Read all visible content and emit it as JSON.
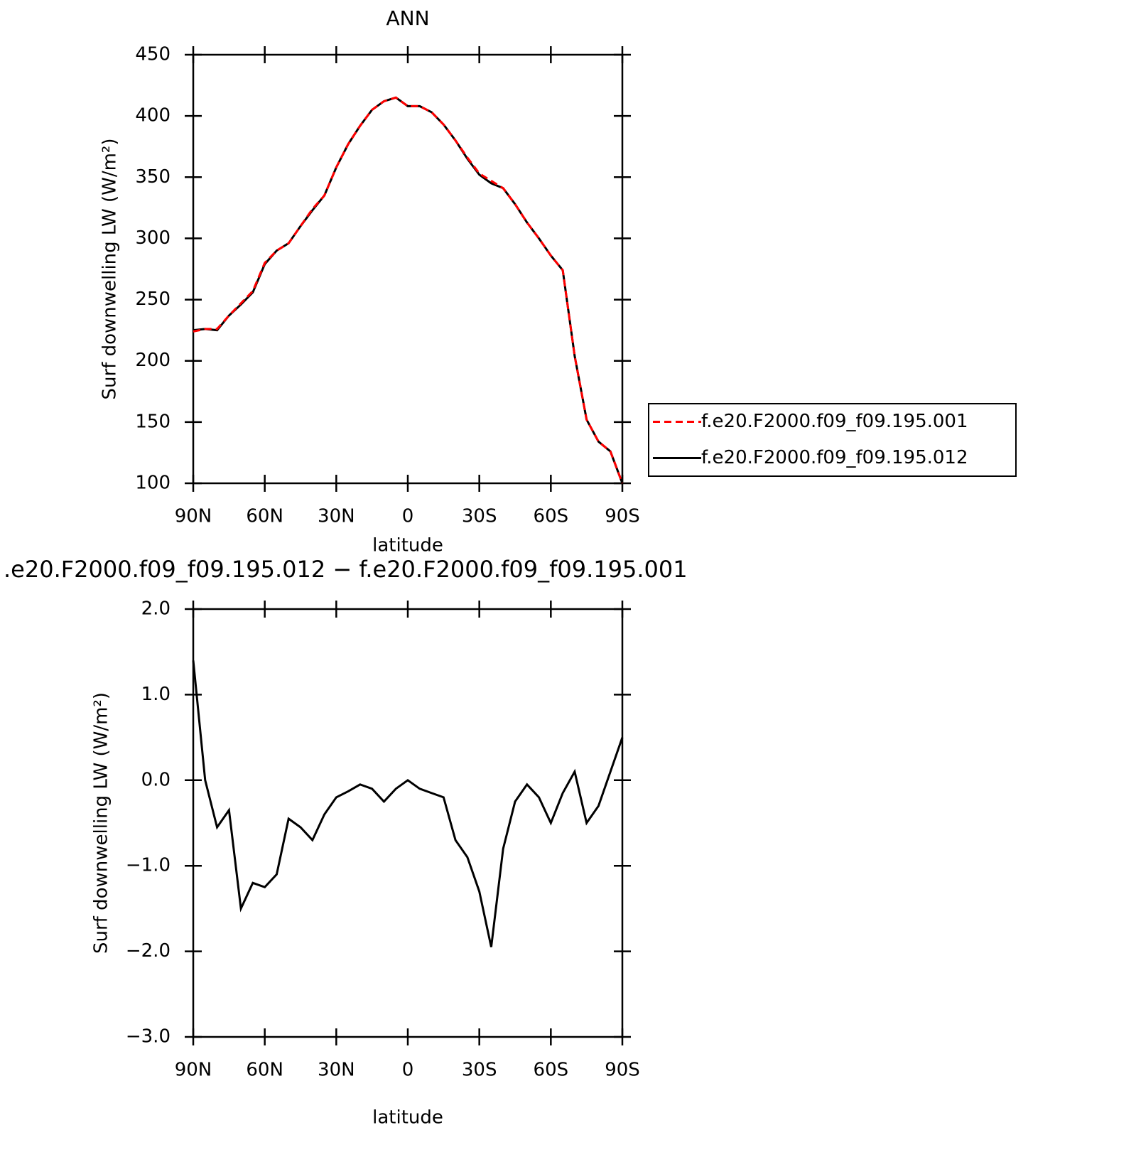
{
  "chart_data": [
    {
      "type": "line",
      "title": "ANN",
      "xlabel": "latitude",
      "ylabel": "Surf downwelling LW (W/m²)",
      "x": [
        90,
        85,
        80,
        75,
        70,
        65,
        60,
        55,
        50,
        45,
        40,
        35,
        30,
        25,
        20,
        15,
        10,
        5,
        0,
        -5,
        -10,
        -15,
        -20,
        -25,
        -30,
        -35,
        -40,
        -45,
        -50,
        -55,
        -60,
        -65,
        -70,
        -75,
        -80,
        -85,
        -90
      ],
      "series": [
        {
          "name": "f.e20.F2000.f09_f09.195.001",
          "color": "#ff0000",
          "line_style": "dashed",
          "values": [
            224,
            226,
            226,
            237,
            247,
            257,
            280,
            290,
            296,
            310,
            324,
            335,
            358,
            377,
            392,
            405,
            412,
            415,
            408,
            408,
            403,
            393,
            380,
            366,
            353,
            347,
            341,
            328,
            313,
            300,
            286,
            274,
            204,
            152,
            134,
            126,
            100
          ]
        },
        {
          "name": "f.e20.F2000.f09_f09.195.012",
          "color": "#000000",
          "line_style": "solid",
          "values": [
            225,
            226,
            225,
            237,
            246,
            256,
            279,
            290,
            296,
            310,
            323,
            335,
            358,
            377,
            392,
            405,
            412,
            415,
            408,
            408,
            403,
            393,
            380,
            365,
            352,
            345,
            341,
            328,
            313,
            300,
            286,
            274,
            204,
            152,
            134,
            126,
            100
          ]
        }
      ],
      "xlim": [
        90,
        -90
      ],
      "xticks": [
        {
          "value": 90,
          "label": "90N"
        },
        {
          "value": 60,
          "label": "60N"
        },
        {
          "value": 30,
          "label": "30N"
        },
        0,
        {
          "value": -30,
          "label": "30S"
        },
        {
          "value": -60,
          "label": "60S"
        },
        {
          "value": -90,
          "label": "90S"
        }
      ],
      "ylim": [
        100,
        450
      ],
      "yticks": [
        100,
        150,
        200,
        250,
        300,
        350,
        400,
        450
      ],
      "legend": "right"
    },
    {
      "type": "line",
      "title": ".e20.F2000.f09_f09.195.012 − f.e20.F2000.f09_f09.195.001",
      "xlabel": "latitude",
      "ylabel": "Surf downwelling LW (W/m²)",
      "x": [
        90,
        85,
        80,
        75,
        70,
        65,
        60,
        55,
        50,
        45,
        40,
        35,
        30,
        25,
        20,
        15,
        10,
        5,
        0,
        -5,
        -10,
        -15,
        -20,
        -25,
        -30,
        -35,
        -40,
        -45,
        -50,
        -55,
        -60,
        -65,
        -70,
        -75,
        -80,
        -85,
        -90
      ],
      "series": [
        {
          "color": "#000000",
          "line_style": "solid",
          "values": [
            1.4,
            0.0,
            -0.55,
            -0.35,
            -1.5,
            -1.2,
            -1.25,
            -1.1,
            -0.45,
            -0.55,
            -0.7,
            -0.4,
            -0.2,
            -0.13,
            -0.05,
            -0.1,
            -0.25,
            -0.1,
            0.0,
            -0.1,
            -0.15,
            -0.2,
            -0.7,
            -0.9,
            -1.3,
            -1.95,
            -0.8,
            -0.25,
            -0.05,
            -0.2,
            -0.5,
            -0.15,
            0.1,
            -0.5,
            -0.3,
            0.1,
            0.5
          ]
        }
      ],
      "xlim": [
        90,
        -90
      ],
      "xticks": [
        {
          "value": 90,
          "label": "90N"
        },
        {
          "value": 60,
          "label": "60N"
        },
        {
          "value": 30,
          "label": "30N"
        },
        0,
        {
          "value": -30,
          "label": "30S"
        },
        {
          "value": -60,
          "label": "60S"
        },
        {
          "value": -90,
          "label": "90S"
        }
      ],
      "ylim": [
        -3,
        2
      ],
      "yticks": [
        {
          "value": -3,
          "label": "−3.0"
        },
        {
          "value": -2,
          "label": "−2.0"
        },
        {
          "value": -1,
          "label": "−1.0"
        },
        {
          "value": 0,
          "label": "0.0"
        },
        {
          "value": 1,
          "label": "1.0"
        },
        {
          "value": 2,
          "label": "2.0"
        }
      ]
    }
  ]
}
